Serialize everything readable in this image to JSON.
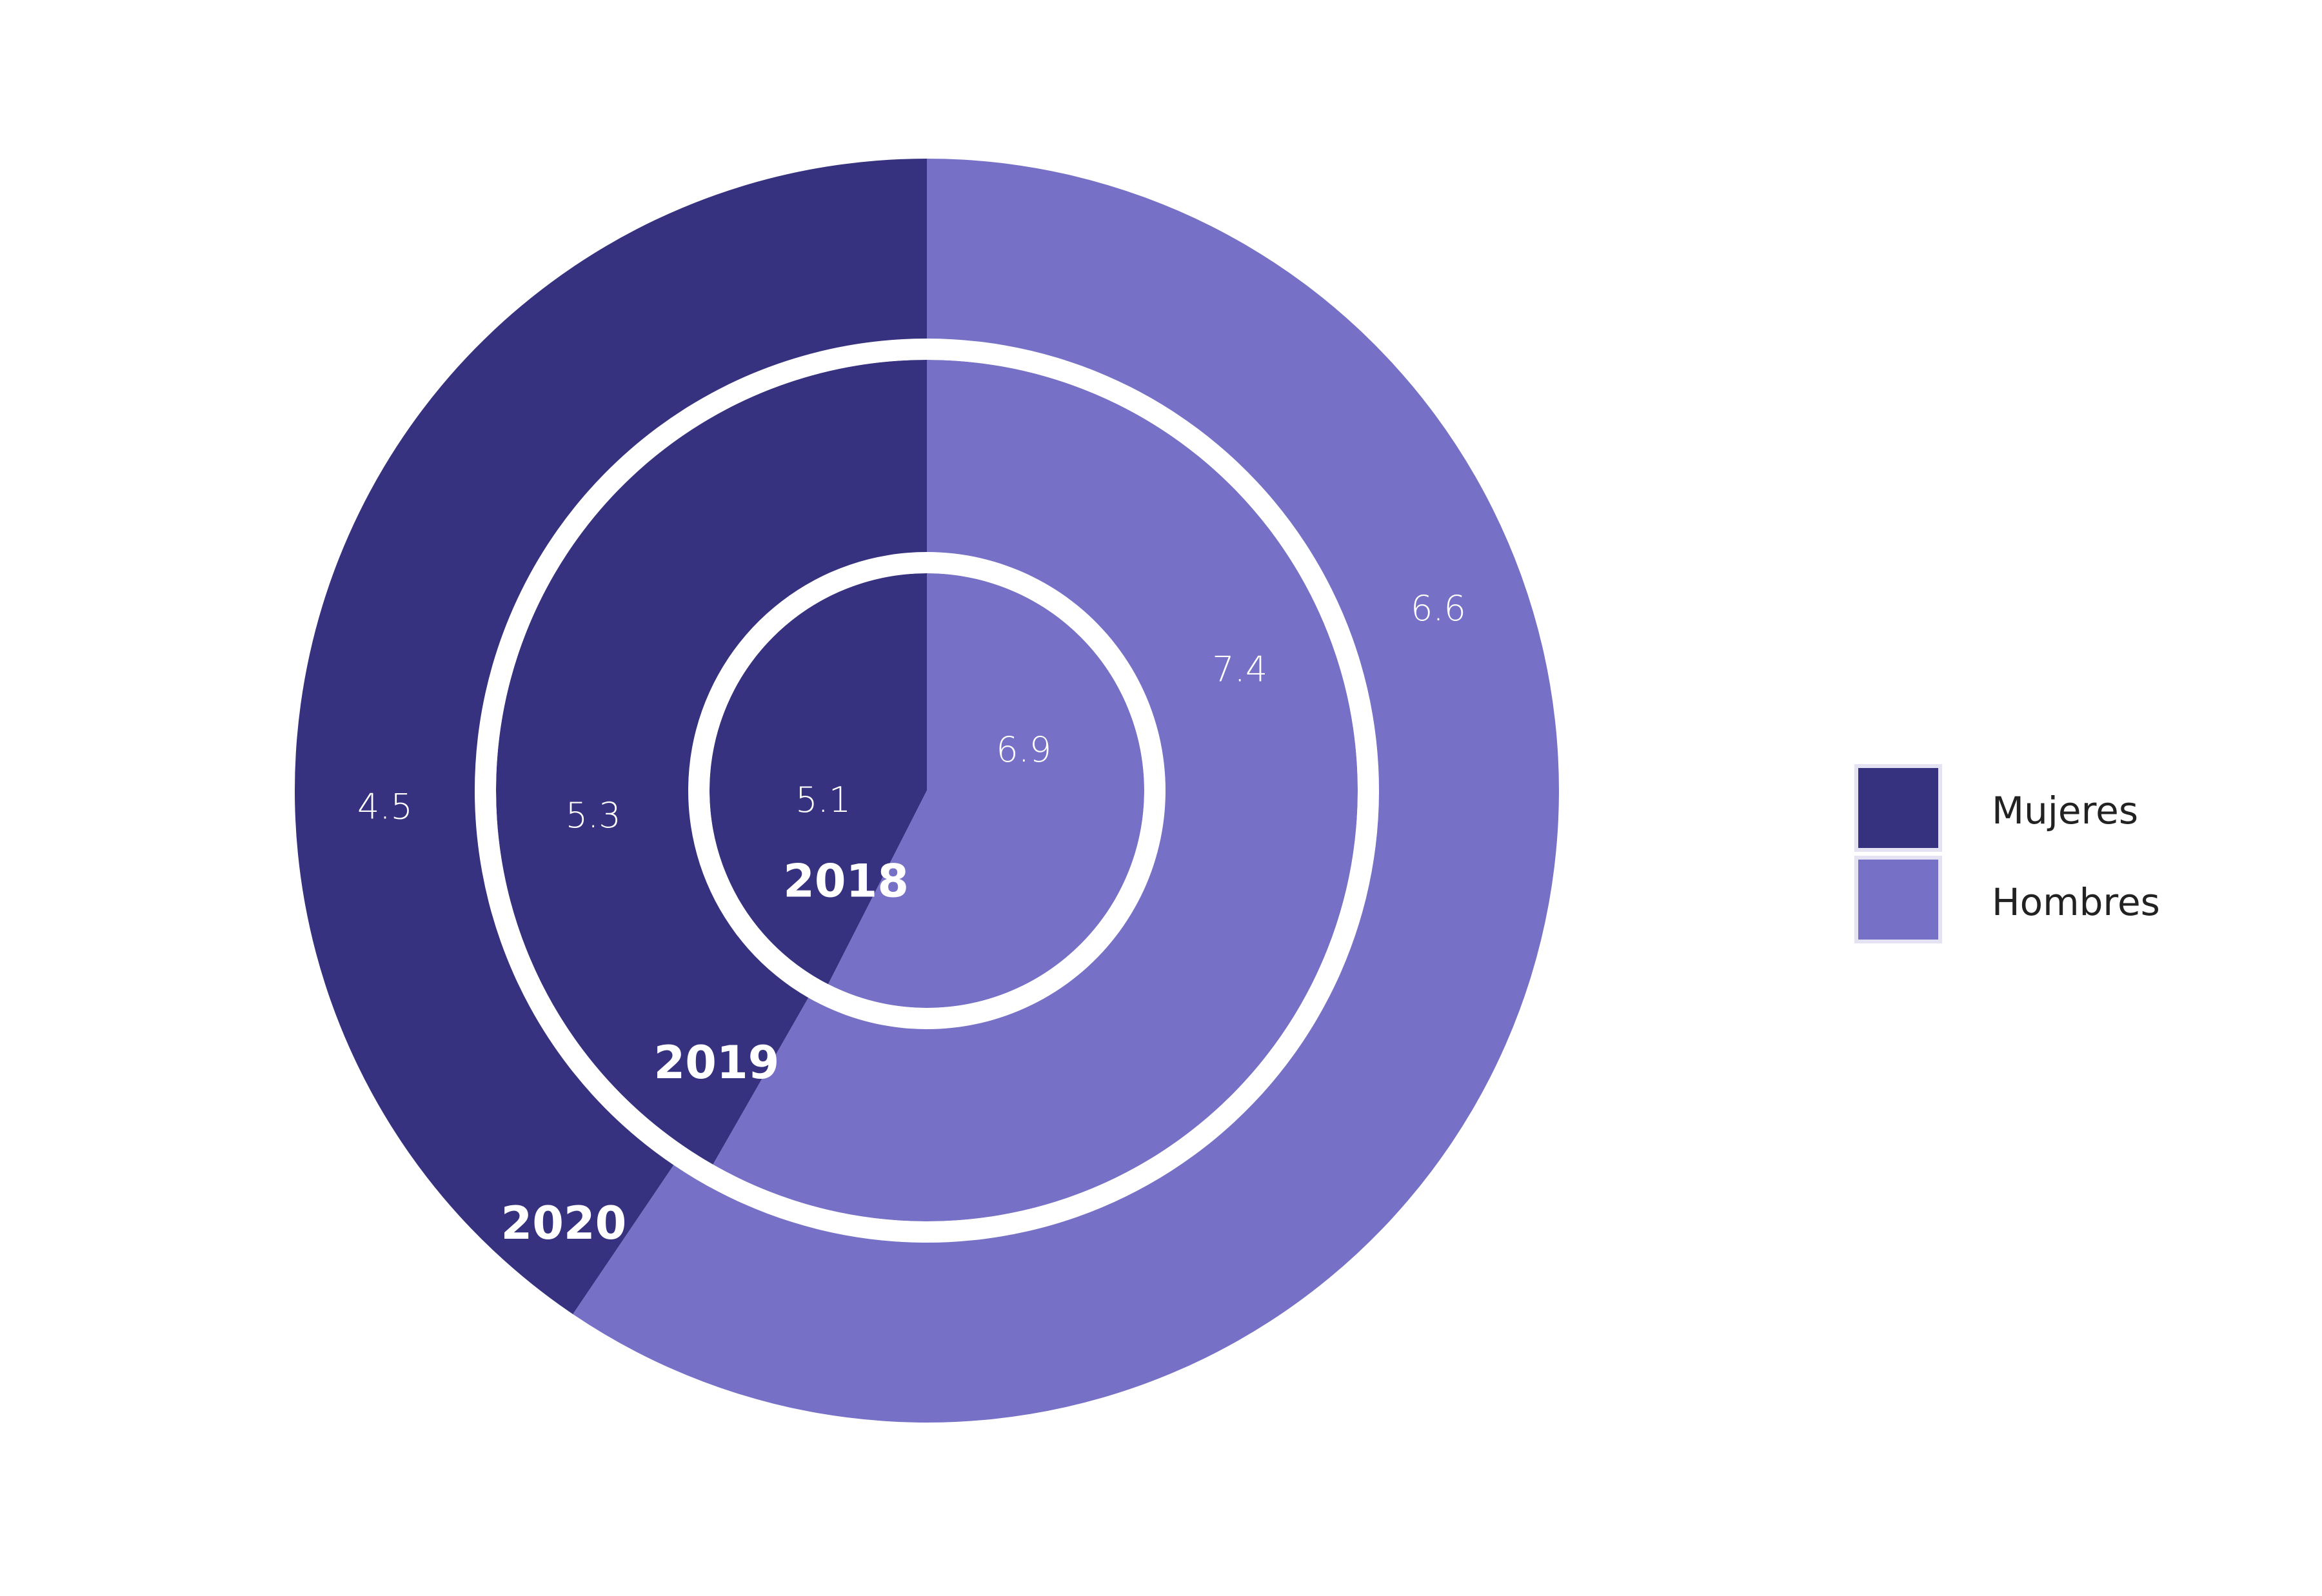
{
  "chart_data": {
    "type": "pie",
    "variant": "nested-donut",
    "title": "",
    "series": [
      {
        "name": "Mujeres",
        "color": "#37327f"
      },
      {
        "name": "Hombres",
        "color": "#7671c6"
      }
    ],
    "rings": [
      {
        "year": "2018",
        "values": [
          5.1,
          6.9
        ],
        "labels": [
          "5.1",
          "6.9"
        ]
      },
      {
        "year": "2019",
        "values": [
          5.3,
          7.4
        ],
        "labels": [
          "5.3",
          "7.4"
        ]
      },
      {
        "year": "2020",
        "values": [
          4.5,
          6.6
        ],
        "labels": [
          "4.5",
          "6.6"
        ]
      }
    ],
    "legend": {
      "position": "right",
      "items": [
        "Mujeres",
        "Hombres"
      ]
    }
  }
}
